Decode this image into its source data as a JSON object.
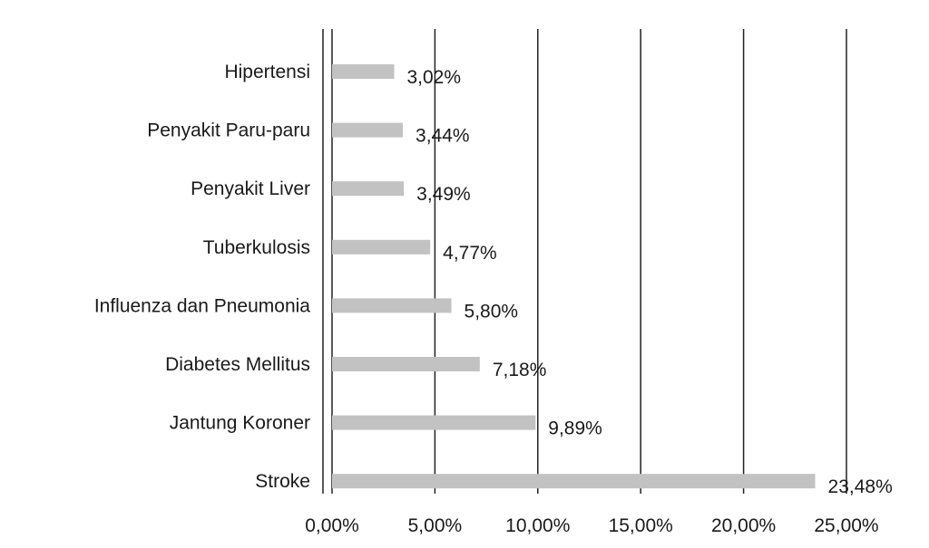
{
  "chart_data": {
    "type": "bar",
    "orientation": "horizontal",
    "categories": [
      "Hipertensi",
      "Penyakit Paru-paru",
      "Penyakit Liver",
      "Tuberkulosis",
      "Influenza dan Pneumonia",
      "Diabetes Mellitus",
      "Jantung Koroner",
      "Stroke"
    ],
    "values": [
      3.02,
      3.44,
      3.49,
      4.77,
      5.8,
      7.18,
      9.89,
      23.48
    ],
    "value_labels": [
      "3,02%",
      "3,44%",
      "3,49%",
      "4,77%",
      "5,80%",
      "7,18%",
      "9,89%",
      "23,48%"
    ],
    "x_ticks": [
      0,
      5,
      10,
      15,
      20,
      25
    ],
    "x_tick_labels": [
      "0,00%",
      "5,00%",
      "10,00%",
      "15,00%",
      "20,00%",
      "25,00%"
    ],
    "xlim": [
      0,
      25
    ],
    "title": "",
    "xlabel": "",
    "ylabel": "",
    "grid": "vertical",
    "legend": "none",
    "bar_color": "#c2c2c2",
    "grid_color": "#222222"
  }
}
